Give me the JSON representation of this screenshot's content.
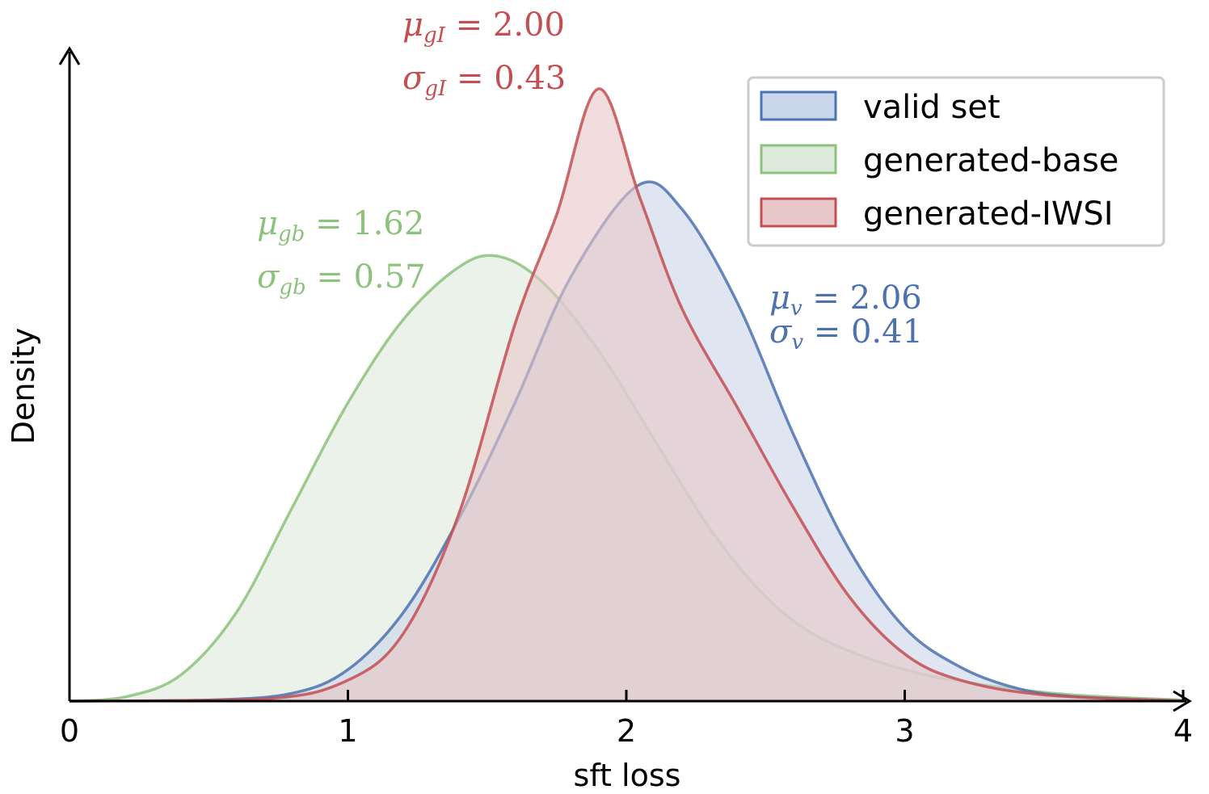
{
  "chart_data": {
    "type": "area",
    "title": "",
    "xlabel": "sft loss",
    "ylabel": "Density",
    "xlim": [
      0,
      4
    ],
    "ylim": [
      0,
      1.0
    ],
    "xticks": [
      "0",
      "1",
      "2",
      "3",
      "4"
    ],
    "grid": false,
    "legend_position": "top-right",
    "series": [
      {
        "name": "valid set",
        "color": "#4C72B0",
        "fill": "#c9d5ea",
        "x": [
          0.0,
          0.5,
          0.8,
          1.0,
          1.2,
          1.4,
          1.6,
          1.8,
          2.04,
          2.2,
          2.4,
          2.6,
          2.8,
          3.0,
          3.2,
          3.4,
          3.6,
          4.0
        ],
        "y": [
          0.0,
          0.002,
          0.015,
          0.06,
          0.17,
          0.35,
          0.57,
          0.81,
          0.985,
          0.94,
          0.76,
          0.51,
          0.29,
          0.14,
          0.065,
          0.025,
          0.009,
          0.0
        ]
      },
      {
        "name": "generated-base",
        "color": "#8dc27c",
        "fill": "#dceadb",
        "x": [
          0.0,
          0.2,
          0.4,
          0.6,
          0.8,
          1.0,
          1.2,
          1.4,
          1.54,
          1.7,
          1.9,
          2.1,
          2.3,
          2.5,
          2.7,
          3.0,
          3.3,
          3.6,
          4.0
        ],
        "y": [
          0.0,
          0.008,
          0.05,
          0.17,
          0.37,
          0.57,
          0.73,
          0.83,
          0.85,
          0.8,
          0.67,
          0.5,
          0.33,
          0.2,
          0.12,
          0.06,
          0.03,
          0.012,
          0.002
        ]
      },
      {
        "name": "generated-IWSI",
        "color": "#c44e52",
        "fill": "#e8c7c8",
        "x": [
          0.0,
          0.7,
          1.0,
          1.2,
          1.4,
          1.6,
          1.75,
          1.9,
          2.05,
          2.2,
          2.4,
          2.6,
          2.8,
          3.0,
          3.2,
          3.5,
          4.0
        ],
        "y": [
          0.0,
          0.004,
          0.04,
          0.13,
          0.36,
          0.72,
          0.93,
          1.17,
          0.96,
          0.75,
          0.56,
          0.37,
          0.2,
          0.09,
          0.04,
          0.012,
          0.0
        ]
      }
    ],
    "annotations": [
      {
        "series": "generated-IWSI",
        "mu": "2.00",
        "sigma": "0.43",
        "mu_sub": "gI",
        "sigma_sub": "gI"
      },
      {
        "series": "generated-base",
        "mu": "1.62",
        "sigma": "0.57",
        "mu_sub": "gb",
        "sigma_sub": "gb"
      },
      {
        "series": "valid set",
        "mu": "2.06",
        "sigma": "0.41",
        "mu_sub": "v",
        "sigma_sub": "v"
      }
    ]
  }
}
